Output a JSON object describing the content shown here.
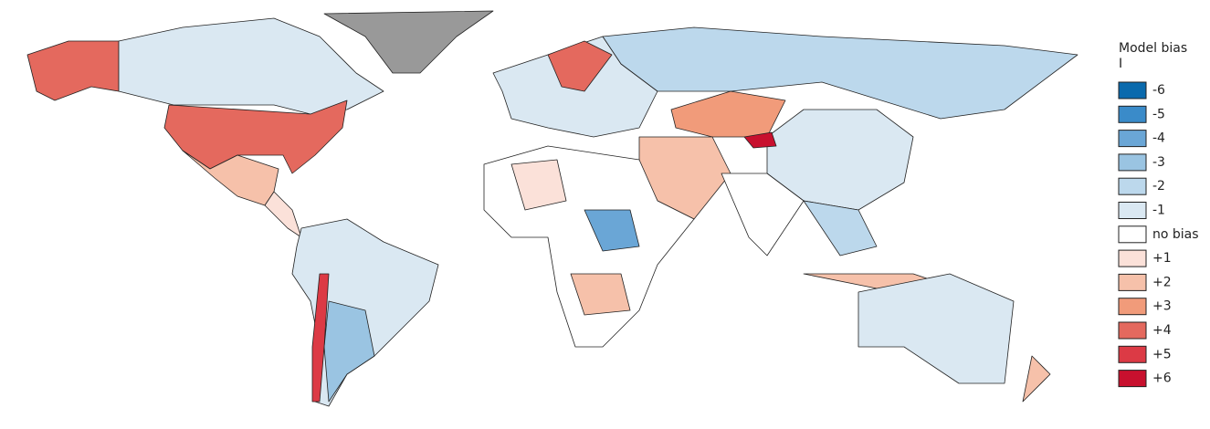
{
  "legend": {
    "title": "Model bias",
    "subtitle": "I",
    "items": [
      {
        "label": "-6",
        "color": "#0a6aad"
      },
      {
        "label": "-5",
        "color": "#3a8bc9"
      },
      {
        "label": "-4",
        "color": "#6aa6d6"
      },
      {
        "label": "-3",
        "color": "#9ac4e2"
      },
      {
        "label": "-2",
        "color": "#bcd8ec"
      },
      {
        "label": "-1",
        "color": "#dae8f2"
      },
      {
        "label": "no bias",
        "color": "#ffffff"
      },
      {
        "label": "+1",
        "color": "#fbe1d9"
      },
      {
        "label": "+2",
        "color": "#f6c1aa"
      },
      {
        "label": "+3",
        "color": "#f19b7a"
      },
      {
        "label": "+4",
        "color": "#e4695e"
      },
      {
        "label": "+5",
        "color": "#dc3a45"
      },
      {
        "label": "+6",
        "color": "#c8102e"
      }
    ]
  }
}
